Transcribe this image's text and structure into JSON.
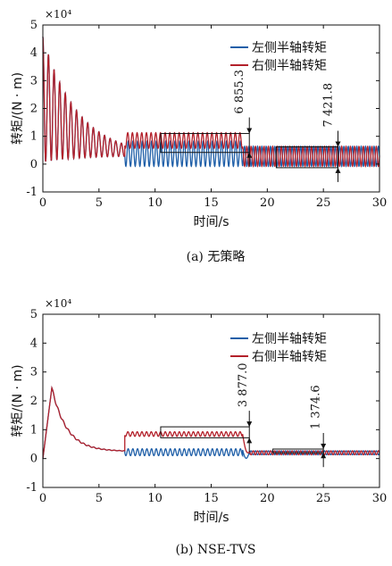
{
  "chart_data": [
    {
      "type": "line",
      "caption": "(a) 无策略",
      "xlabel": "时间/s",
      "ylabel": "转矩/(N · m)",
      "y_multiplier": "×10⁴",
      "xlim": [
        0,
        30
      ],
      "ylim": [
        -1,
        5
      ],
      "xticks": [
        "0",
        "5",
        "10",
        "15",
        "20",
        "25",
        "30"
      ],
      "yticks": [
        "-1",
        "0",
        "1",
        "2",
        "3",
        "4",
        "5"
      ],
      "legend_position": "top-right",
      "series": [
        {
          "name": "左侧半轴转矩",
          "color": "#1f5fa8",
          "segments": [
            {
              "t0": 0,
              "t1": 7.3,
              "kind": "decay",
              "peak": 4.8,
              "base": 0.3,
              "damping": 0.32,
              "freq": 2.0,
              "phase": 0
            },
            {
              "t0": 7.3,
              "t1": 17.8,
              "kind": "steady",
              "center": 0.37,
              "amplitude": 0.45,
              "freq": 2.4,
              "phase": 0
            },
            {
              "t0": 17.8,
              "t1": 30,
              "kind": "steady",
              "center": 0.28,
              "amplitude": 0.36,
              "freq": 2.6,
              "phase": 3.1416
            }
          ]
        },
        {
          "name": "右侧半轴转矩",
          "color": "#b3202a",
          "segments": [
            {
              "t0": 0,
              "t1": 7.3,
              "kind": "decay",
              "peak": 4.8,
              "base": 0.3,
              "damping": 0.32,
              "freq": 2.0,
              "phase": 0
            },
            {
              "t0": 7.3,
              "t1": 17.8,
              "kind": "steady",
              "center": 0.85,
              "amplitude": 0.28,
              "freq": 2.4,
              "phase": 0.6
            },
            {
              "t0": 17.8,
              "t1": 30,
              "kind": "steady",
              "center": 0.28,
              "amplitude": 0.36,
              "freq": 2.6,
              "phase": 0
            }
          ]
        }
      ],
      "annotations": [
        {
          "label": "6 855.3",
          "x_text": 18.0,
          "x_arrow": 18.4,
          "y_top": 1.1,
          "y_bottom": 0.42,
          "box": {
            "x0": 10.5,
            "x1": 18.4,
            "y0": 0.42,
            "y1": 1.1
          }
        },
        {
          "label": "7 421.8",
          "x_text": 25.9,
          "x_arrow": 26.3,
          "y_top": 0.62,
          "y_bottom": -0.13,
          "box": {
            "x0": 20.8,
            "x1": 26.3,
            "y0": -0.13,
            "y1": 0.62
          }
        }
      ]
    },
    {
      "type": "line",
      "caption": "(b) NSE-TVS",
      "xlabel": "时间/s",
      "ylabel": "转矩/(N · m)",
      "y_multiplier": "×10⁴",
      "xlim": [
        0,
        30
      ],
      "ylim": [
        -1,
        5
      ],
      "xticks": [
        "0",
        "5",
        "10",
        "15",
        "20",
        "25",
        "30"
      ],
      "yticks": [
        "-1",
        "0",
        "1",
        "2",
        "3",
        "4",
        "5"
      ],
      "legend_position": "top-right",
      "series": [
        {
          "name": "左侧半轴转矩",
          "color": "#1f5fa8",
          "segments": [
            {
              "t0": 0,
              "t1": 7.3,
              "kind": "hump",
              "peak": 2.45,
              "base": 0.25,
              "peak_t": 0.8
            },
            {
              "t0": 7.3,
              "t1": 17.8,
              "kind": "steady",
              "center": 0.22,
              "amplitude": 0.12,
              "freq": 2.4,
              "phase": 0
            },
            {
              "t0": 17.8,
              "t1": 18.4,
              "kind": "dip",
              "from": 0.3,
              "to": 0.22
            },
            {
              "t0": 18.4,
              "t1": 30,
              "kind": "steady",
              "center": 0.2,
              "amplitude": 0.07,
              "freq": 2.6,
              "phase": 0
            }
          ]
        },
        {
          "name": "右侧半轴转矩",
          "color": "#b3202a",
          "segments": [
            {
              "t0": 0,
              "t1": 7.3,
              "kind": "hump",
              "peak": 2.45,
              "base": 0.25,
              "peak_t": 0.8
            },
            {
              "t0": 7.3,
              "t1": 17.8,
              "kind": "steady",
              "center": 0.85,
              "amplitude": 0.08,
              "freq": 2.4,
              "phase": 0.4
            },
            {
              "t0": 17.8,
              "t1": 18.4,
              "kind": "dip",
              "from": 0.85,
              "to": 0.22
            },
            {
              "t0": 18.4,
              "t1": 30,
              "kind": "steady",
              "center": 0.2,
              "amplitude": 0.07,
              "freq": 2.6,
              "phase": 3.1416
            }
          ]
        }
      ],
      "annotations": [
        {
          "label": "3 877.0",
          "x_text": 18.3,
          "x_arrow": 18.4,
          "y_top": 1.1,
          "y_bottom": 0.72,
          "box": {
            "x0": 10.5,
            "x1": 18.4,
            "y0": 0.72,
            "y1": 1.1
          }
        },
        {
          "label": "1 374.6",
          "x_text": 24.8,
          "x_arrow": 25.0,
          "y_top": 0.33,
          "y_bottom": 0.2,
          "box": {
            "x0": 20.5,
            "x1": 25.0,
            "y0": 0.2,
            "y1": 0.33
          }
        }
      ]
    }
  ]
}
